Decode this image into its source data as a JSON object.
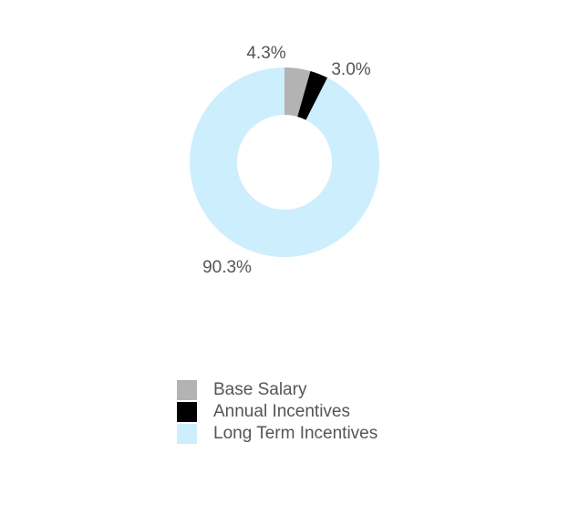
{
  "chart_data": {
    "type": "pie",
    "subtype": "donut",
    "title": "",
    "categories": [
      "Base Salary",
      "Annual Incentives",
      "Long Term Incentives"
    ],
    "values": [
      4.3,
      3.0,
      90.3
    ],
    "labels": [
      "4.3%",
      "3.0%",
      "90.3%"
    ],
    "colors": [
      "#b3b3b3",
      "#000000",
      "#cdeefc"
    ],
    "legend_position": "bottom"
  }
}
